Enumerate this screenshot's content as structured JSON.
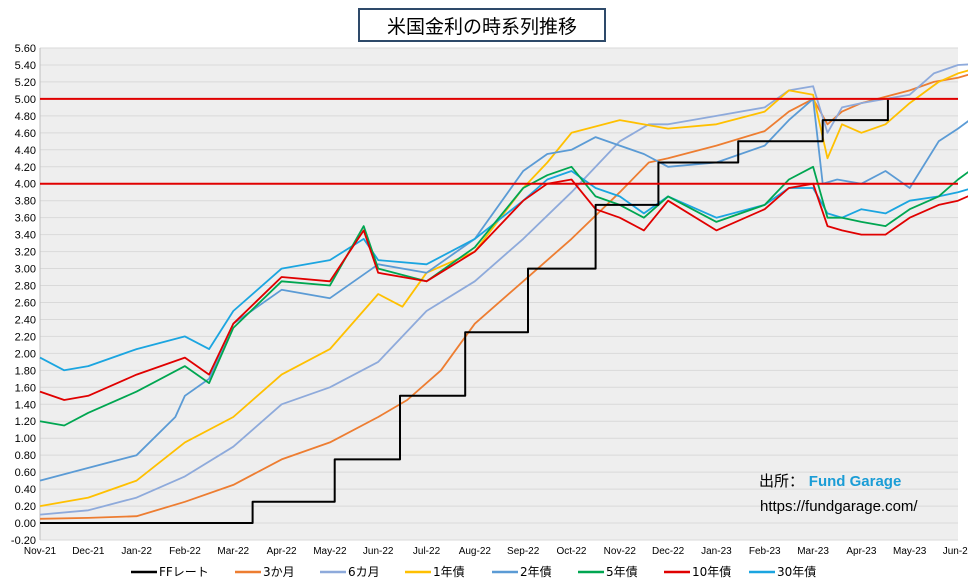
{
  "title": "米国金利の時系列推移",
  "source": {
    "label": "出所：",
    "brand": "Fund Garage",
    "url": "https://fundgarage.com/"
  },
  "colors": {
    "ff": "#000000",
    "m3": "#ed7d31",
    "m6": "#8eaadb",
    "y1": "#ffc000",
    "y2": "#5b9bd5",
    "y5": "#00a651",
    "y10": "#e00000",
    "y30": "#1ba5e0",
    "refline": "#e00000",
    "grid": "#d9d9d9",
    "plot_bg": "#eeeeee"
  },
  "chart_data": {
    "type": "line",
    "title": "米国金利の時系列推移",
    "ylim": [
      -0.2,
      5.6
    ],
    "y_ticks": [
      "-0.20",
      "0.00",
      "0.20",
      "0.40",
      "0.60",
      "0.80",
      "1.00",
      "1.20",
      "1.40",
      "1.60",
      "1.80",
      "2.00",
      "2.20",
      "2.40",
      "2.60",
      "2.80",
      "3.00",
      "3.20",
      "3.40",
      "3.60",
      "3.80",
      "4.00",
      "4.20",
      "4.40",
      "4.60",
      "4.80",
      "5.00",
      "5.20",
      "5.40",
      "5.60"
    ],
    "x_ticks": [
      "Nov-21",
      "Dec-21",
      "Jan-22",
      "Feb-22",
      "Mar-22",
      "Apr-22",
      "May-22",
      "Jun-22",
      "Jul-22",
      "Aug-22",
      "Sep-22",
      "Oct-22",
      "Nov-22",
      "Dec-22",
      "Jan-23",
      "Feb-23",
      "Mar-23",
      "Apr-23",
      "May-23",
      "Jun-23"
    ],
    "reference_lines": [
      4.0,
      5.0
    ],
    "grid": true,
    "legend_position": "bottom",
    "series": [
      {
        "key": "ff",
        "name": "FFレート",
        "step": true,
        "x": [
          0,
          4.4,
          4.4,
          6.1,
          6.1,
          7.45,
          7.45,
          8.8,
          8.8,
          10.1,
          10.1,
          11.5,
          11.5,
          12.8,
          12.8,
          14.45,
          14.45,
          16.2,
          16.2,
          17.55,
          17.55
        ],
        "y": [
          0.0,
          0.0,
          0.25,
          0.25,
          0.75,
          0.75,
          1.5,
          1.5,
          2.25,
          2.25,
          3.0,
          3.0,
          3.75,
          3.75,
          4.25,
          4.25,
          4.5,
          4.5,
          4.75,
          4.75,
          5.0
        ]
      },
      {
        "key": "m3",
        "name": "3か月",
        "x": [
          0,
          1,
          2,
          3,
          4,
          5,
          6,
          7,
          7.6,
          8.3,
          9,
          10,
          11,
          12,
          12.6,
          13,
          14,
          15,
          15.5,
          16,
          16.3,
          16.6,
          17,
          18,
          18.5,
          19,
          19.6
        ],
        "y": [
          0.05,
          0.06,
          0.08,
          0.25,
          0.45,
          0.75,
          0.95,
          1.25,
          1.45,
          1.8,
          2.35,
          2.85,
          3.35,
          3.9,
          4.25,
          4.3,
          4.45,
          4.62,
          4.85,
          5.0,
          4.7,
          4.85,
          4.95,
          5.1,
          5.2,
          5.25,
          5.35
        ]
      },
      {
        "key": "m6",
        "name": "6カ月",
        "x": [
          0,
          1,
          2,
          3,
          4,
          5,
          6,
          7,
          8,
          9,
          10,
          11,
          12,
          12.6,
          13,
          14,
          15,
          15.5,
          16,
          16.3,
          16.6,
          17,
          18,
          18.5,
          19,
          19.6
        ],
        "y": [
          0.1,
          0.15,
          0.3,
          0.55,
          0.9,
          1.4,
          1.6,
          1.9,
          2.5,
          2.85,
          3.35,
          3.9,
          4.5,
          4.7,
          4.7,
          4.8,
          4.9,
          5.1,
          5.15,
          4.6,
          4.9,
          4.95,
          5.05,
          5.3,
          5.4,
          5.42
        ]
      },
      {
        "key": "y1",
        "name": "1年債",
        "x": [
          0,
          1,
          2,
          3,
          4,
          5,
          6,
          7,
          7.5,
          8,
          9,
          10,
          10.5,
          11,
          12,
          13,
          14,
          15,
          15.5,
          16,
          16.3,
          16.6,
          17,
          17.5,
          18,
          18.6,
          19,
          19.6
        ],
        "y": [
          0.2,
          0.3,
          0.5,
          0.95,
          1.25,
          1.75,
          2.05,
          2.7,
          2.55,
          2.95,
          3.2,
          3.95,
          4.25,
          4.6,
          4.75,
          4.65,
          4.7,
          4.85,
          5.1,
          5.05,
          4.3,
          4.7,
          4.6,
          4.7,
          4.95,
          5.2,
          5.3,
          5.4
        ]
      },
      {
        "key": "y2",
        "name": "2年債",
        "x": [
          0,
          1,
          2,
          2.8,
          3,
          3.5,
          4,
          5,
          6,
          7,
          8,
          9,
          10,
          10.5,
          11,
          11.5,
          12,
          12.5,
          13,
          14,
          15,
          15.5,
          16,
          16.2,
          16.5,
          17,
          17.5,
          18,
          18.6,
          19,
          19.6
        ],
        "y": [
          0.5,
          0.65,
          0.8,
          1.25,
          1.5,
          1.7,
          2.35,
          2.75,
          2.65,
          3.05,
          2.95,
          3.35,
          4.15,
          4.35,
          4.4,
          4.55,
          4.45,
          4.35,
          4.2,
          4.25,
          4.45,
          4.75,
          5.0,
          4.0,
          4.05,
          4.0,
          4.15,
          3.95,
          4.5,
          4.65,
          4.9
        ]
      },
      {
        "key": "y5",
        "name": "5年債",
        "x": [
          0,
          0.5,
          1,
          2,
          3,
          3.5,
          4,
          5,
          6,
          6.7,
          7,
          8,
          9,
          10,
          10.5,
          11,
          11.5,
          12,
          12.5,
          13,
          14,
          15,
          15.5,
          16,
          16.3,
          16.6,
          17,
          17.5,
          18,
          18.6,
          19,
          19.6
        ],
        "y": [
          1.2,
          1.15,
          1.3,
          1.55,
          1.85,
          1.65,
          2.3,
          2.85,
          2.8,
          3.5,
          3.0,
          2.85,
          3.25,
          3.95,
          4.1,
          4.2,
          3.85,
          3.75,
          3.6,
          3.85,
          3.55,
          3.75,
          4.05,
          4.2,
          3.6,
          3.6,
          3.55,
          3.5,
          3.7,
          3.85,
          4.05,
          4.3
        ]
      },
      {
        "key": "y10",
        "name": "10年債",
        "x": [
          0,
          0.5,
          1,
          2,
          3,
          3.5,
          4,
          5,
          6,
          6.7,
          7,
          8,
          9,
          10,
          10.5,
          11,
          11.5,
          12,
          12.5,
          13,
          14,
          15,
          15.5,
          16,
          16.3,
          16.6,
          17,
          17.5,
          18,
          18.6,
          19,
          19.6
        ],
        "y": [
          1.55,
          1.45,
          1.5,
          1.75,
          1.95,
          1.75,
          2.35,
          2.9,
          2.85,
          3.45,
          2.95,
          2.85,
          3.2,
          3.8,
          4.0,
          4.05,
          3.7,
          3.6,
          3.45,
          3.8,
          3.45,
          3.7,
          3.95,
          4.0,
          3.5,
          3.45,
          3.4,
          3.4,
          3.6,
          3.75,
          3.8,
          3.95
        ]
      },
      {
        "key": "y30",
        "name": "30年債",
        "x": [
          0,
          0.5,
          1,
          2,
          3,
          3.5,
          4,
          5,
          6,
          6.7,
          7,
          8,
          9,
          10,
          10.5,
          11,
          11.5,
          12,
          12.5,
          13,
          14,
          15,
          15.5,
          16,
          16.3,
          16.6,
          17,
          17.5,
          18,
          18.6,
          19,
          19.6
        ],
        "y": [
          1.95,
          1.8,
          1.85,
          2.05,
          2.2,
          2.05,
          2.5,
          3.0,
          3.1,
          3.35,
          3.1,
          3.05,
          3.35,
          3.8,
          4.05,
          4.15,
          3.95,
          3.85,
          3.65,
          3.85,
          3.6,
          3.75,
          3.95,
          3.95,
          3.65,
          3.6,
          3.7,
          3.65,
          3.8,
          3.85,
          3.9,
          4.0
        ]
      }
    ]
  }
}
